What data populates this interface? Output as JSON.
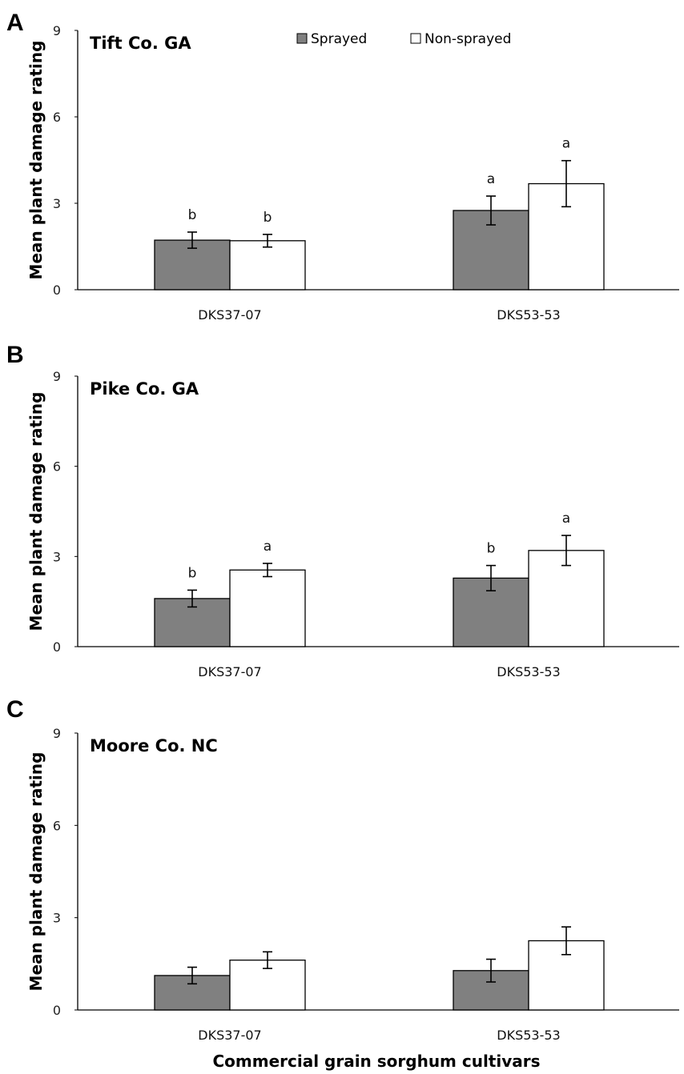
{
  "chart_data": [
    {
      "type": "bar",
      "panel": "A",
      "title": "Tift Co. GA",
      "categories": [
        "DKS37-07",
        "DKS53-53"
      ],
      "series": [
        {
          "name": "Sprayed",
          "color": "#808080",
          "values": [
            1.72,
            2.75
          ],
          "errors": [
            0.28,
            0.5
          ],
          "letters": [
            "b",
            "a"
          ]
        },
        {
          "name": "Non-sprayed",
          "color": "#ffffff",
          "values": [
            1.7,
            3.68
          ],
          "errors": [
            0.22,
            0.8
          ],
          "letters": [
            "b",
            "a"
          ]
        }
      ],
      "ylabel": "Mean plant damage rating",
      "xlabel": "",
      "yticks": [
        0,
        3,
        6,
        9
      ],
      "ylim": [
        0,
        9
      ],
      "legend": "top-center"
    },
    {
      "type": "bar",
      "panel": "B",
      "title": "Pike Co. GA",
      "categories": [
        "DKS37-07",
        "DKS53-53"
      ],
      "series": [
        {
          "name": "Sprayed",
          "color": "#808080",
          "values": [
            1.6,
            2.28
          ],
          "errors": [
            0.28,
            0.42
          ],
          "letters": [
            "b",
            "b"
          ]
        },
        {
          "name": "Non-sprayed",
          "color": "#ffffff",
          "values": [
            2.55,
            3.2
          ],
          "errors": [
            0.22,
            0.5
          ],
          "letters": [
            "a",
            "a"
          ]
        }
      ],
      "ylabel": "Mean plant damage rating",
      "xlabel": "",
      "yticks": [
        0,
        3,
        6,
        9
      ],
      "ylim": [
        0,
        9
      ]
    },
    {
      "type": "bar",
      "panel": "C",
      "title": "Moore Co. NC",
      "categories": [
        "DKS37-07",
        "DKS53-53"
      ],
      "series": [
        {
          "name": "Sprayed",
          "color": "#808080",
          "values": [
            1.12,
            1.28
          ],
          "errors": [
            0.27,
            0.37
          ],
          "letters": [
            "",
            ""
          ]
        },
        {
          "name": "Non-sprayed",
          "color": "#ffffff",
          "values": [
            1.62,
            2.25
          ],
          "errors": [
            0.27,
            0.45
          ],
          "letters": [
            "",
            ""
          ]
        }
      ],
      "ylabel": "Mean plant damage rating",
      "xlabel": "Commercial grain sorghum cultivars",
      "yticks": [
        0,
        3,
        6,
        9
      ],
      "ylim": [
        0,
        9
      ]
    }
  ]
}
